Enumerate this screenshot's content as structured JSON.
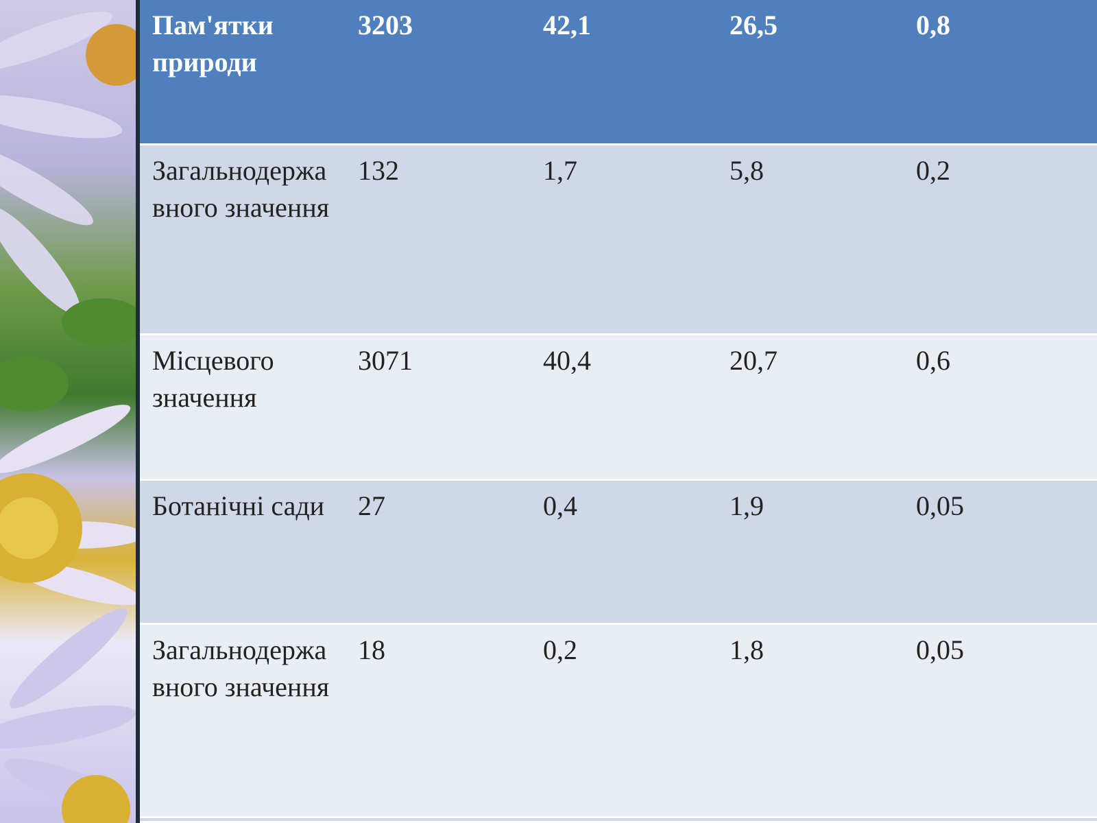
{
  "table": {
    "rows": [
      {
        "cells": [
          "Пам'ятки природи",
          "3203",
          "42,1",
          "26,5",
          "0,8"
        ]
      },
      {
        "cells": [
          "Загальнодержа вного значення",
          "132",
          "1,7",
          "5,8",
          "0,2"
        ]
      },
      {
        "cells": [
          "Місцевого значення",
          "3071",
          "40,4",
          "20,7",
          "0,6"
        ]
      },
      {
        "cells": [
          "Ботанічні сади",
          "27",
          "0,4",
          "1,9",
          "0,05"
        ]
      },
      {
        "cells": [
          "Загальнодержа вного значення",
          "18",
          "0,2",
          "1,8",
          "0,05"
        ]
      }
    ]
  },
  "colors": {
    "header_bg": "#4f80bd",
    "row_dark": "#d0d8e8",
    "row_light": "#e9edf4"
  },
  "decoration": {
    "icon": "aster-flower-photo"
  }
}
